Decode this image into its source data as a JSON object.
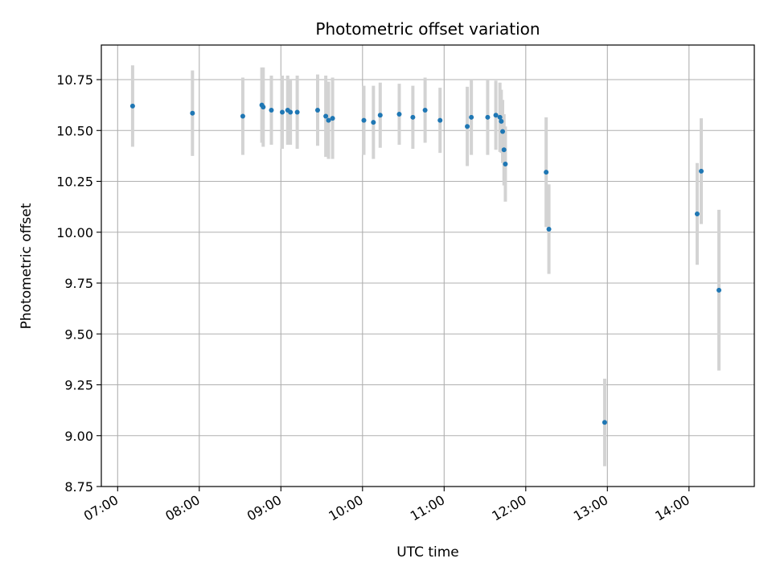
{
  "chart_data": {
    "type": "scatter",
    "title": "Photometric offset variation",
    "xlabel": "UTC time",
    "ylabel": "Photometric offset",
    "x_axis_kind": "time",
    "xlim": [
      "06:48",
      "14:48"
    ],
    "ylim": [
      8.75,
      10.92
    ],
    "x_ticks": [
      "07:00",
      "08:00",
      "09:00",
      "10:00",
      "11:00",
      "12:00",
      "13:00",
      "14:00"
    ],
    "y_ticks": [
      8.75,
      9.0,
      9.25,
      9.5,
      9.75,
      10.0,
      10.25,
      10.5,
      10.75
    ],
    "y_tick_labels": [
      "8.75",
      "9.00",
      "9.25",
      "9.50",
      "9.75",
      "10.00",
      "10.25",
      "10.50",
      "10.75"
    ],
    "grid": true,
    "marker_color": "#1f77b4",
    "errorbar_color": "#d3d3d3",
    "points": [
      {
        "x": "07:11",
        "y": 10.62,
        "err": 0.2
      },
      {
        "x": "07:55",
        "y": 10.585,
        "err": 0.21
      },
      {
        "x": "08:32",
        "y": 10.57,
        "err": 0.19
      },
      {
        "x": "08:46",
        "y": 10.625,
        "err": 0.185
      },
      {
        "x": "08:47",
        "y": 10.615,
        "err": 0.195
      },
      {
        "x": "08:53",
        "y": 10.6,
        "err": 0.17
      },
      {
        "x": "09:01",
        "y": 10.59,
        "err": 0.18
      },
      {
        "x": "09:05",
        "y": 10.6,
        "err": 0.17
      },
      {
        "x": "09:07",
        "y": 10.59,
        "err": 0.16
      },
      {
        "x": "09:12",
        "y": 10.59,
        "err": 0.18
      },
      {
        "x": "09:27",
        "y": 10.6,
        "err": 0.175
      },
      {
        "x": "09:33",
        "y": 10.57,
        "err": 0.2
      },
      {
        "x": "09:35",
        "y": 10.55,
        "err": 0.19
      },
      {
        "x": "09:38",
        "y": 10.56,
        "err": 0.2
      },
      {
        "x": "10:01",
        "y": 10.55,
        "err": 0.17
      },
      {
        "x": "10:08",
        "y": 10.54,
        "err": 0.18
      },
      {
        "x": "10:13",
        "y": 10.575,
        "err": 0.16
      },
      {
        "x": "10:27",
        "y": 10.58,
        "err": 0.15
      },
      {
        "x": "10:37",
        "y": 10.565,
        "err": 0.155
      },
      {
        "x": "10:46",
        "y": 10.6,
        "err": 0.16
      },
      {
        "x": "10:57",
        "y": 10.55,
        "err": 0.16
      },
      {
        "x": "11:17",
        "y": 10.52,
        "err": 0.195
      },
      {
        "x": "11:20",
        "y": 10.565,
        "err": 0.185
      },
      {
        "x": "11:32",
        "y": 10.565,
        "err": 0.185
      },
      {
        "x": "11:38",
        "y": 10.575,
        "err": 0.17
      },
      {
        "x": "11:41",
        "y": 10.565,
        "err": 0.17
      },
      {
        "x": "11:42",
        "y": 10.545,
        "err": 0.155
      },
      {
        "x": "11:43",
        "y": 10.495,
        "err": 0.155
      },
      {
        "x": "11:44",
        "y": 10.405,
        "err": 0.175
      },
      {
        "x": "11:45",
        "y": 10.335,
        "err": 0.185
      },
      {
        "x": "12:15",
        "y": 10.295,
        "err": 0.27
      },
      {
        "x": "12:17",
        "y": 10.015,
        "err": 0.22
      },
      {
        "x": "12:58",
        "y": 9.065,
        "err": 0.215
      },
      {
        "x": "14:06",
        "y": 10.09,
        "err": 0.25
      },
      {
        "x": "14:09",
        "y": 10.3,
        "err": 0.26
      },
      {
        "x": "14:22",
        "y": 9.715,
        "err": 0.395
      }
    ]
  }
}
